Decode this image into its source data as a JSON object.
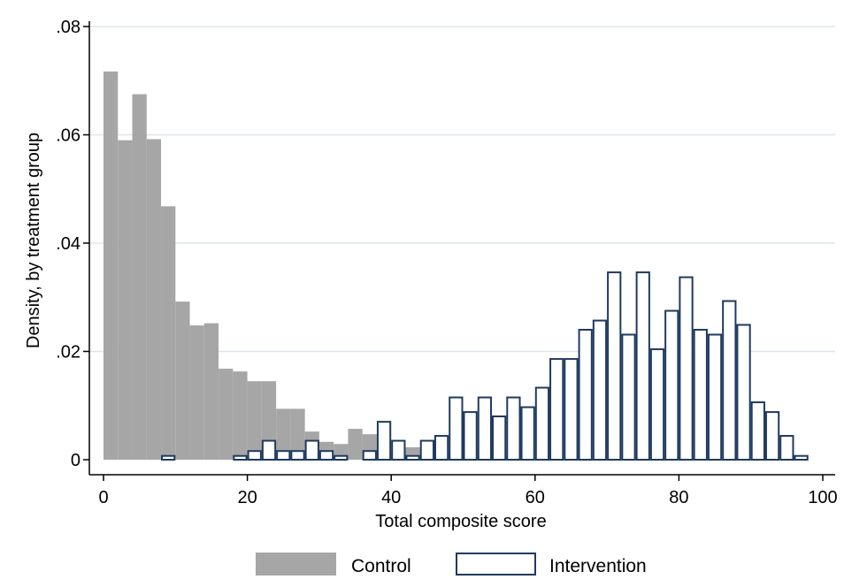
{
  "chart_data": {
    "type": "bar",
    "subtype": "overlaid histogram",
    "title": "",
    "xlabel": "Total composite score",
    "ylabel": "Density, by treatment group",
    "xlim": [
      0,
      100
    ],
    "ylim": [
      0,
      0.08
    ],
    "x_ticks": [
      {
        "value": 0,
        "label": "0"
      },
      {
        "value": 20,
        "label": "20"
      },
      {
        "value": 40,
        "label": "40"
      },
      {
        "value": 60,
        "label": "60"
      },
      {
        "value": 80,
        "label": "80"
      },
      {
        "value": 100,
        "label": "100"
      }
    ],
    "y_ticks": [
      {
        "value": 0,
        "label": "0"
      },
      {
        "value": 0.02,
        "label": ".02"
      },
      {
        "value": 0.04,
        "label": ".04"
      },
      {
        "value": 0.06,
        "label": ".06"
      },
      {
        "value": 0.08,
        "label": ".08"
      }
    ],
    "grid": true,
    "legend_position": "bottom",
    "bin_width": 2,
    "series": [
      {
        "name": "Control",
        "style": "filled",
        "color": "#a6a6a6",
        "bin_starts": [
          0,
          2,
          4,
          6,
          8,
          10,
          12,
          14,
          16,
          18,
          20,
          22,
          24,
          26,
          28,
          30,
          32,
          34,
          36,
          38,
          40,
          42,
          44,
          46,
          48,
          50,
          52,
          54,
          56
        ],
        "values": [
          0.0717,
          0.059,
          0.0675,
          0.0592,
          0.0468,
          0.0292,
          0.0248,
          0.0252,
          0.0168,
          0.0163,
          0.0145,
          0.0145,
          0.0094,
          0.0094,
          0.0052,
          0.0033,
          0.0029,
          0.0057,
          0.0047,
          0.0014,
          0.0016,
          0.0023,
          0.0019,
          0.0017,
          0.0015,
          0.0023,
          0.0012,
          0.0005,
          0.001
        ]
      },
      {
        "name": "Intervention",
        "style": "outline",
        "color": "#1f3a5f",
        "bin_starts": [
          8,
          18,
          20,
          22,
          24,
          26,
          28,
          30,
          32,
          36,
          38,
          40,
          42,
          44,
          46,
          48,
          50,
          52,
          54,
          56,
          58,
          60,
          62,
          64,
          66,
          68,
          70,
          72,
          74,
          76,
          78,
          80,
          82,
          84,
          86,
          88,
          90,
          92,
          94,
          96
        ],
        "values": [
          0.0007,
          0.0007,
          0.0016,
          0.0035,
          0.0016,
          0.0016,
          0.0035,
          0.0016,
          0.0007,
          0.0016,
          0.007,
          0.0035,
          0.0007,
          0.0035,
          0.0044,
          0.0115,
          0.0088,
          0.0115,
          0.008,
          0.0115,
          0.0097,
          0.0133,
          0.0186,
          0.0186,
          0.024,
          0.0257,
          0.0346,
          0.0231,
          0.0346,
          0.0204,
          0.0275,
          0.0337,
          0.024,
          0.0231,
          0.0293,
          0.0249,
          0.0106,
          0.0088,
          0.0044,
          0.0007
        ]
      }
    ]
  },
  "colors": {
    "control_fill": "#a6a6a6",
    "intervention_stroke": "#1f3a5f",
    "grid": "#dde6ec"
  }
}
